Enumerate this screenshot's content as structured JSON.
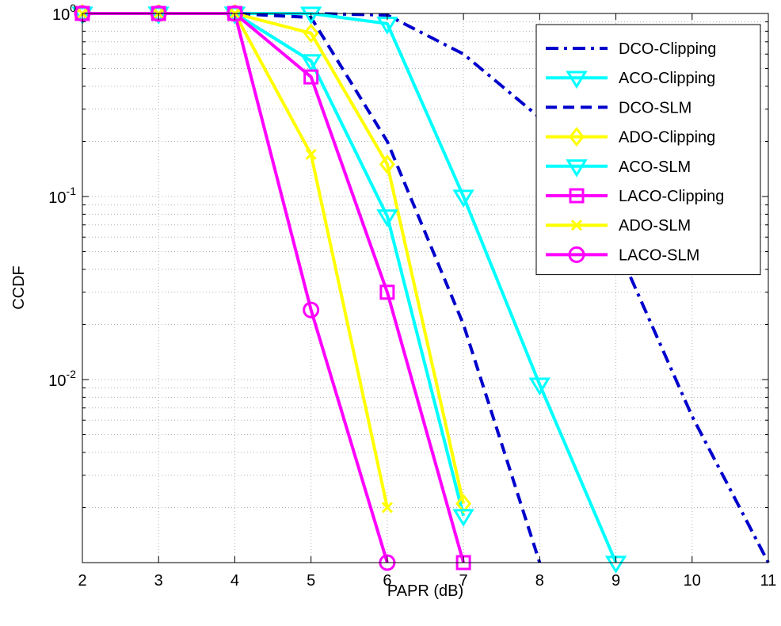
{
  "chart_data": {
    "type": "line",
    "xlabel": "PAPR (dB)",
    "ylabel": "CCDF",
    "xlim": [
      2,
      11
    ],
    "ylim": [
      0.001,
      1
    ],
    "yscale": "log",
    "xticks": [
      2,
      3,
      4,
      5,
      6,
      7,
      8,
      9,
      10,
      11
    ],
    "yticks": [
      {
        "value": 1,
        "base": "10",
        "exp": "0"
      },
      {
        "value": 0.1,
        "base": "10",
        "exp": "-1"
      },
      {
        "value": 0.01,
        "base": "10",
        "exp": "-2"
      }
    ],
    "grid": true,
    "legend_position": "top-right",
    "series": [
      {
        "name": "DCO-Clipping",
        "color": "#0000cc",
        "dash": "dashdot",
        "marker": "none",
        "x": [
          2,
          3,
          4,
          5,
          6,
          7,
          8,
          9,
          10,
          11
        ],
        "y": [
          1,
          1,
          1,
          1,
          0.98,
          0.6,
          0.27,
          0.055,
          0.0063,
          0.001
        ]
      },
      {
        "name": "ACO-Clipping",
        "color": "#00ffff",
        "dash": "solid",
        "marker": "triangle-down",
        "x": [
          2,
          3,
          4,
          5,
          6,
          7,
          8,
          9
        ],
        "y": [
          1,
          1,
          1,
          1,
          0.88,
          0.1,
          0.0094,
          0.001
        ]
      },
      {
        "name": "DCO-SLM",
        "color": "#0000cc",
        "dash": "dashed",
        "marker": "none",
        "x": [
          2,
          3,
          4,
          5,
          6,
          7,
          8
        ],
        "y": [
          1,
          1,
          1,
          0.95,
          0.2,
          0.02,
          0.001
        ]
      },
      {
        "name": "ADO-Clipping",
        "color": "#ffff00",
        "dash": "solid",
        "marker": "diamond",
        "x": [
          2,
          3,
          4,
          5,
          6,
          7
        ],
        "y": [
          1,
          1,
          1,
          0.78,
          0.15,
          0.0021
        ]
      },
      {
        "name": "ACO-SLM",
        "color": "#00ffff",
        "dash": "solid",
        "marker": "triangle-down",
        "x": [
          2,
          3,
          4,
          5,
          6,
          7
        ],
        "y": [
          1,
          1,
          1,
          0.55,
          0.078,
          0.0018
        ]
      },
      {
        "name": "LACO-Clipping",
        "color": "#ff00ff",
        "dash": "solid",
        "marker": "square",
        "x": [
          2,
          3,
          4,
          5,
          6,
          7
        ],
        "y": [
          1,
          1,
          1,
          0.45,
          0.03,
          0.001
        ]
      },
      {
        "name": "ADO-SLM",
        "color": "#ffff00",
        "dash": "solid",
        "marker": "x",
        "x": [
          2,
          3,
          4,
          5,
          6
        ],
        "y": [
          1,
          1,
          1,
          0.17,
          0.002
        ]
      },
      {
        "name": "LACO-SLM",
        "color": "#ff00ff",
        "dash": "solid",
        "marker": "circle",
        "x": [
          2,
          3,
          4,
          5,
          6
        ],
        "y": [
          1,
          1,
          1,
          0.024,
          0.001
        ]
      }
    ]
  }
}
